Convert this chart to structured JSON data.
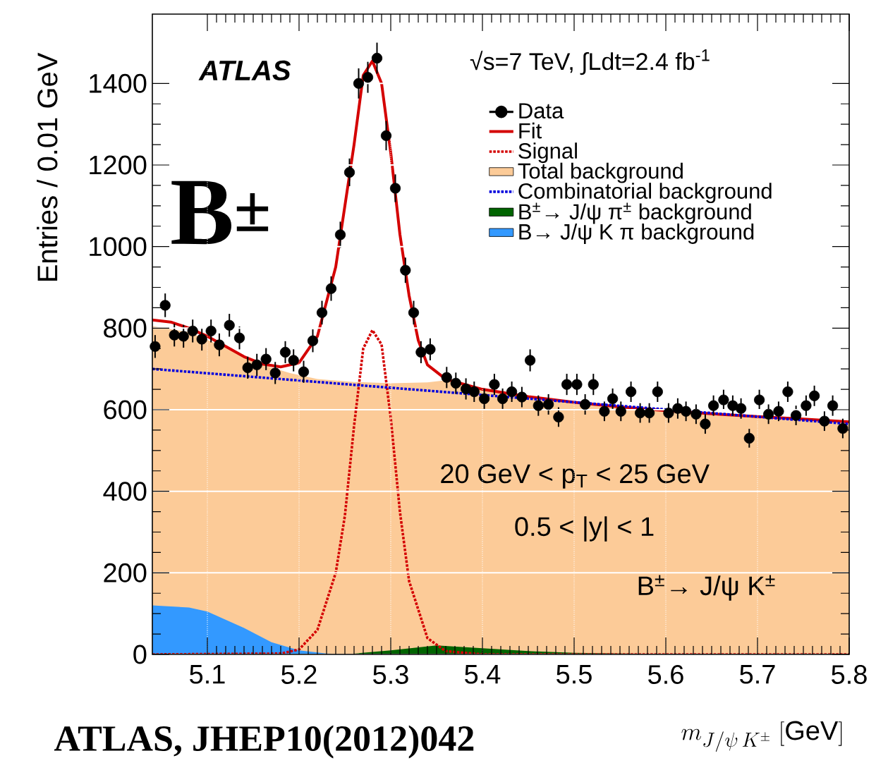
{
  "chart_data": {
    "type": "line",
    "xlabel": "m_{J/\\psi\\, K^{\\pm}}\\;\\mathrm{[GeV]}",
    "ylabel": "Entries / 0.01 GeV",
    "xlim": [
      5.04,
      5.8
    ],
    "ylim": [
      0,
      1570
    ],
    "xticks": [
      5.1,
      5.2,
      5.3,
      5.4,
      5.5,
      5.6,
      5.7,
      5.8
    ],
    "yticks": [
      0,
      200,
      400,
      600,
      800,
      1000,
      1200,
      1400
    ],
    "grid": true,
    "legend": "top right",
    "annotations": [
      "ATLAS",
      "√s=7 TeV, ∫Ldt=2.4 fb$^{-1}$",
      "B$^{±}$",
      "20 GeV < p$_{T}$ < 25 GeV",
      "0.5 < |y| < 1",
      "B$^{±}$→ J/ψ K$^{±}$",
      "ATLAS, JHEP10(2012)042"
    ],
    "series": [
      {
        "name": "Data",
        "type": "scatter",
        "marker": "circle",
        "color": "#000000",
        "x": [
          5.043,
          5.054,
          5.064,
          5.074,
          5.084,
          5.094,
          5.104,
          5.113,
          5.124,
          5.135,
          5.144,
          5.154,
          5.164,
          5.174,
          5.185,
          5.194,
          5.205,
          5.215,
          5.225,
          5.235,
          5.245,
          5.255,
          5.265,
          5.275,
          5.285,
          5.295,
          5.305,
          5.316,
          5.325,
          5.333,
          5.343,
          5.361,
          5.371,
          5.382,
          5.391,
          5.402,
          5.413,
          5.422,
          5.432,
          5.443,
          5.452,
          5.461,
          5.472,
          5.483,
          5.492,
          5.503,
          5.512,
          5.521,
          5.533,
          5.542,
          5.551,
          5.562,
          5.572,
          5.582,
          5.591,
          5.603,
          5.613,
          5.622,
          5.633,
          5.643,
          5.652,
          5.663,
          5.673,
          5.682,
          5.691,
          5.702,
          5.712,
          5.723,
          5.733,
          5.742,
          5.753,
          5.762,
          5.773,
          5.782,
          5.793
        ],
        "values": [
          755,
          856,
          783,
          780,
          793,
          773,
          793,
          759,
          807,
          776,
          703,
          710,
          724,
          690,
          741,
          721,
          693,
          769,
          838,
          897,
          1029,
          1182,
          1400,
          1415,
          1462,
          1272,
          1143,
          942,
          838,
          741,
          748,
          679,
          665,
          651,
          644,
          627,
          662,
          627,
          644,
          631,
          721,
          610,
          613,
          582,
          662,
          662,
          613,
          662,
          596,
          627,
          596,
          644,
          592,
          592,
          644,
          592,
          603,
          596,
          589,
          565,
          610,
          624,
          610,
          603,
          530,
          624,
          589,
          596,
          644,
          586,
          610,
          634,
          572,
          610,
          554
        ],
        "errors": [
          28,
          29,
          28,
          28,
          28,
          28,
          28,
          28,
          28,
          28,
          27,
          27,
          27,
          27,
          27,
          27,
          27,
          28,
          29,
          30,
          32,
          34,
          37,
          38,
          38,
          36,
          34,
          31,
          29,
          27,
          27,
          26,
          26,
          26,
          25,
          25,
          26,
          25,
          25,
          25,
          27,
          25,
          25,
          24,
          26,
          26,
          25,
          26,
          24,
          25,
          24,
          25,
          24,
          24,
          25,
          24,
          25,
          24,
          24,
          24,
          25,
          25,
          25,
          25,
          23,
          25,
          24,
          24,
          25,
          24,
          25,
          25,
          24,
          25,
          24
        ]
      },
      {
        "name": "Fit",
        "line_style": "solid",
        "color": "#d40000",
        "x": [
          5.04,
          5.06,
          5.08,
          5.1,
          5.12,
          5.14,
          5.16,
          5.18,
          5.2,
          5.22,
          5.24,
          5.26,
          5.27,
          5.28,
          5.29,
          5.3,
          5.31,
          5.32,
          5.33,
          5.34,
          5.36,
          5.4,
          5.45,
          5.5,
          5.55,
          5.6,
          5.65,
          5.7,
          5.75,
          5.8
        ],
        "values": [
          820,
          815,
          800,
          780,
          755,
          730,
          712,
          705,
          715,
          780,
          950,
          1250,
          1420,
          1455,
          1400,
          1230,
          1030,
          880,
          770,
          710,
          675,
          650,
          632,
          618,
          607,
          598,
          590,
          583,
          577,
          570
        ]
      },
      {
        "name": "Signal",
        "line_style": "dotted",
        "color": "#d40000",
        "x": [
          5.04,
          5.18,
          5.2,
          5.22,
          5.24,
          5.25,
          5.26,
          5.27,
          5.28,
          5.29,
          5.3,
          5.31,
          5.32,
          5.34,
          5.36,
          5.4,
          5.8
        ],
        "values": [
          0,
          2,
          12,
          60,
          200,
          340,
          560,
          750,
          795,
          760,
          580,
          350,
          180,
          40,
          8,
          0,
          0
        ]
      },
      {
        "name": "Total background",
        "type": "area",
        "color": "#fccb98",
        "x": [
          5.04,
          5.08,
          5.12,
          5.16,
          5.19,
          5.22,
          5.26,
          5.3,
          5.34,
          5.36,
          5.4,
          5.45,
          5.5,
          5.55,
          5.6,
          5.65,
          5.7,
          5.75,
          5.8
        ],
        "values": [
          805,
          790,
          752,
          710,
          690,
          675,
          668,
          665,
          667,
          672,
          650,
          632,
          618,
          607,
          598,
          590,
          583,
          577,
          570
        ]
      },
      {
        "name": "Combinatorial background",
        "line_style": "dotted",
        "color": "#0000dd",
        "x": [
          5.04,
          5.8
        ],
        "values": [
          700,
          565
        ]
      },
      {
        "name": "B$^{±}$→ J/ψ π$^{±}$ background",
        "type": "area",
        "color": "#006400",
        "x": [
          5.25,
          5.3,
          5.35,
          5.4,
          5.45,
          5.5,
          5.6,
          5.8
        ],
        "values": [
          0,
          10,
          22,
          15,
          8,
          4,
          1,
          0
        ]
      },
      {
        "name": "B→ J/ψ K π background",
        "type": "area",
        "color": "#3399ff",
        "x": [
          5.04,
          5.08,
          5.1,
          5.14,
          5.17,
          5.2,
          5.23,
          5.26
        ],
        "values": [
          120,
          115,
          105,
          65,
          30,
          10,
          2,
          0
        ]
      }
    ]
  }
}
